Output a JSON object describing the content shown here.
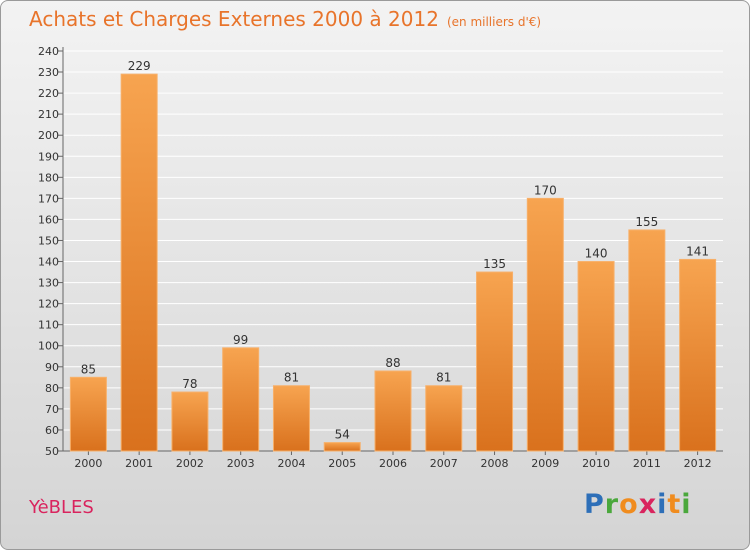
{
  "header": {
    "title": "Achats et Charges Externes 2000 à 2012",
    "subtitle": "(en milliers d'€)"
  },
  "footer": {
    "commune": "YèBLES",
    "brand": "Proxiti"
  },
  "brand_letters": [
    {
      "char": "P",
      "color": "#2d6fb8"
    },
    {
      "char": "r",
      "color": "#4aa83c"
    },
    {
      "char": "o",
      "color": "#f08c1e"
    },
    {
      "char": "x",
      "color": "#d9245e"
    },
    {
      "char": "i",
      "color": "#2d6fb8"
    },
    {
      "char": "t",
      "color": "#f08c1e"
    },
    {
      "char": "i",
      "color": "#4aa83c"
    }
  ],
  "chart_data": {
    "type": "bar",
    "categories": [
      "2000",
      "2001",
      "2002",
      "2003",
      "2004",
      "2005",
      "2006",
      "2007",
      "2008",
      "2009",
      "2010",
      "2011",
      "2012"
    ],
    "values": [
      85,
      229,
      78,
      99,
      81,
      54,
      88,
      81,
      135,
      170,
      140,
      155,
      141
    ],
    "ylim": [
      50,
      240
    ],
    "yticks": [
      50,
      60,
      70,
      80,
      90,
      100,
      110,
      120,
      130,
      140,
      150,
      160,
      170,
      180,
      190,
      200,
      210,
      220,
      230,
      240
    ],
    "grid": true,
    "bar_color": "#f0882e"
  }
}
